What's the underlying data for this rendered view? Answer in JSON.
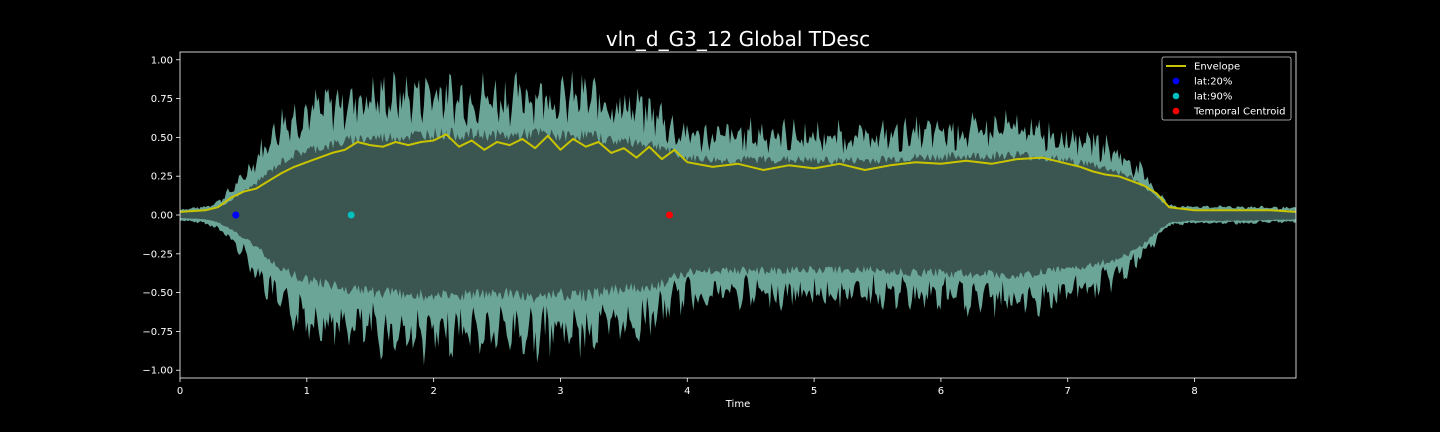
{
  "chart_data": {
    "type": "line",
    "title": "vln_d_G3_12 Global TDesc",
    "xlabel": "Time",
    "ylabel": "",
    "xlim": [
      0,
      8.8
    ],
    "ylim": [
      -1.05,
      1.05
    ],
    "xticks": [
      0,
      1,
      2,
      3,
      4,
      5,
      6,
      7,
      8
    ],
    "yticks": [
      1.0,
      0.75,
      0.5,
      0.25,
      0.0,
      -0.25,
      -0.5,
      -0.75,
      -1.0
    ],
    "ytick_labels": [
      "1.00",
      "0.75",
      "0.50",
      "0.25",
      "0.00",
      "−0.25",
      "−0.50",
      "−0.75",
      "−1.00"
    ],
    "grid": false,
    "legend_position": "top-right",
    "colors": {
      "background": "#000000",
      "waveform_outer": "#6aa597",
      "waveform_inner": "#3b5650",
      "envelope": "#c9c400",
      "axis": "#ffffff"
    },
    "series": [
      {
        "name": "Envelope",
        "kind": "line",
        "color": "#c9c400",
        "x": [
          0,
          0.2,
          0.3,
          0.4,
          0.5,
          0.6,
          0.7,
          0.8,
          0.9,
          1.0,
          1.1,
          1.2,
          1.3,
          1.4,
          1.5,
          1.6,
          1.7,
          1.8,
          1.9,
          2.0,
          2.1,
          2.2,
          2.3,
          2.4,
          2.5,
          2.6,
          2.7,
          2.8,
          2.9,
          3.0,
          3.1,
          3.2,
          3.3,
          3.4,
          3.5,
          3.6,
          3.7,
          3.8,
          3.9,
          4.0,
          4.2,
          4.4,
          4.6,
          4.8,
          5.0,
          5.2,
          5.4,
          5.6,
          5.8,
          6.0,
          6.2,
          6.4,
          6.6,
          6.8,
          7.0,
          7.1,
          7.2,
          7.3,
          7.4,
          7.5,
          7.6,
          7.7,
          7.8,
          8.0,
          8.2,
          8.4,
          8.6,
          8.8
        ],
        "y": [
          0.02,
          0.03,
          0.05,
          0.11,
          0.15,
          0.17,
          0.22,
          0.27,
          0.31,
          0.34,
          0.37,
          0.4,
          0.42,
          0.47,
          0.45,
          0.44,
          0.47,
          0.45,
          0.47,
          0.48,
          0.52,
          0.44,
          0.48,
          0.42,
          0.47,
          0.45,
          0.49,
          0.43,
          0.51,
          0.42,
          0.49,
          0.44,
          0.47,
          0.4,
          0.43,
          0.37,
          0.44,
          0.36,
          0.42,
          0.34,
          0.31,
          0.33,
          0.29,
          0.32,
          0.3,
          0.33,
          0.29,
          0.32,
          0.34,
          0.33,
          0.35,
          0.33,
          0.36,
          0.37,
          0.33,
          0.31,
          0.28,
          0.26,
          0.25,
          0.22,
          0.19,
          0.14,
          0.05,
          0.03,
          0.03,
          0.03,
          0.03,
          0.02
        ]
      },
      {
        "name": "lat:20%",
        "kind": "point",
        "color": "#0000ff",
        "x": [
          0.44
        ],
        "y": [
          0.0
        ]
      },
      {
        "name": "lat:90%",
        "kind": "point",
        "color": "#00bfbf",
        "x": [
          1.35
        ],
        "y": [
          0.0
        ]
      },
      {
        "name": "Temporal Centroid",
        "kind": "point",
        "color": "#ff0000",
        "x": [
          3.86
        ],
        "y": [
          0.0
        ]
      }
    ],
    "waveform": {
      "x": [
        0,
        0.2,
        0.3,
        0.4,
        0.5,
        0.6,
        0.7,
        0.8,
        0.9,
        1.0,
        1.2,
        1.4,
        1.6,
        1.8,
        2.0,
        2.2,
        2.4,
        2.6,
        2.8,
        3.0,
        3.2,
        3.4,
        3.6,
        3.8,
        3.9,
        4.0,
        4.3,
        4.6,
        5.0,
        5.4,
        5.8,
        6.2,
        6.6,
        7.0,
        7.2,
        7.4,
        7.5,
        7.6,
        7.7,
        7.8,
        8.0,
        8.4,
        8.8
      ],
      "peak": [
        0.04,
        0.06,
        0.1,
        0.18,
        0.28,
        0.42,
        0.55,
        0.68,
        0.72,
        0.76,
        0.82,
        0.85,
        0.88,
        0.88,
        0.92,
        0.86,
        0.88,
        0.86,
        0.9,
        0.86,
        0.88,
        0.82,
        0.8,
        0.72,
        0.62,
        0.6,
        0.58,
        0.6,
        0.58,
        0.58,
        0.6,
        0.62,
        0.64,
        0.58,
        0.54,
        0.45,
        0.38,
        0.3,
        0.18,
        0.07,
        0.06,
        0.06,
        0.05
      ],
      "inner": [
        0.02,
        0.03,
        0.05,
        0.1,
        0.16,
        0.22,
        0.3,
        0.37,
        0.42,
        0.45,
        0.49,
        0.53,
        0.54,
        0.55,
        0.57,
        0.56,
        0.56,
        0.55,
        0.57,
        0.55,
        0.56,
        0.52,
        0.51,
        0.48,
        0.42,
        0.4,
        0.38,
        0.39,
        0.38,
        0.38,
        0.4,
        0.41,
        0.42,
        0.38,
        0.35,
        0.3,
        0.26,
        0.2,
        0.12,
        0.05,
        0.04,
        0.04,
        0.03
      ]
    }
  }
}
